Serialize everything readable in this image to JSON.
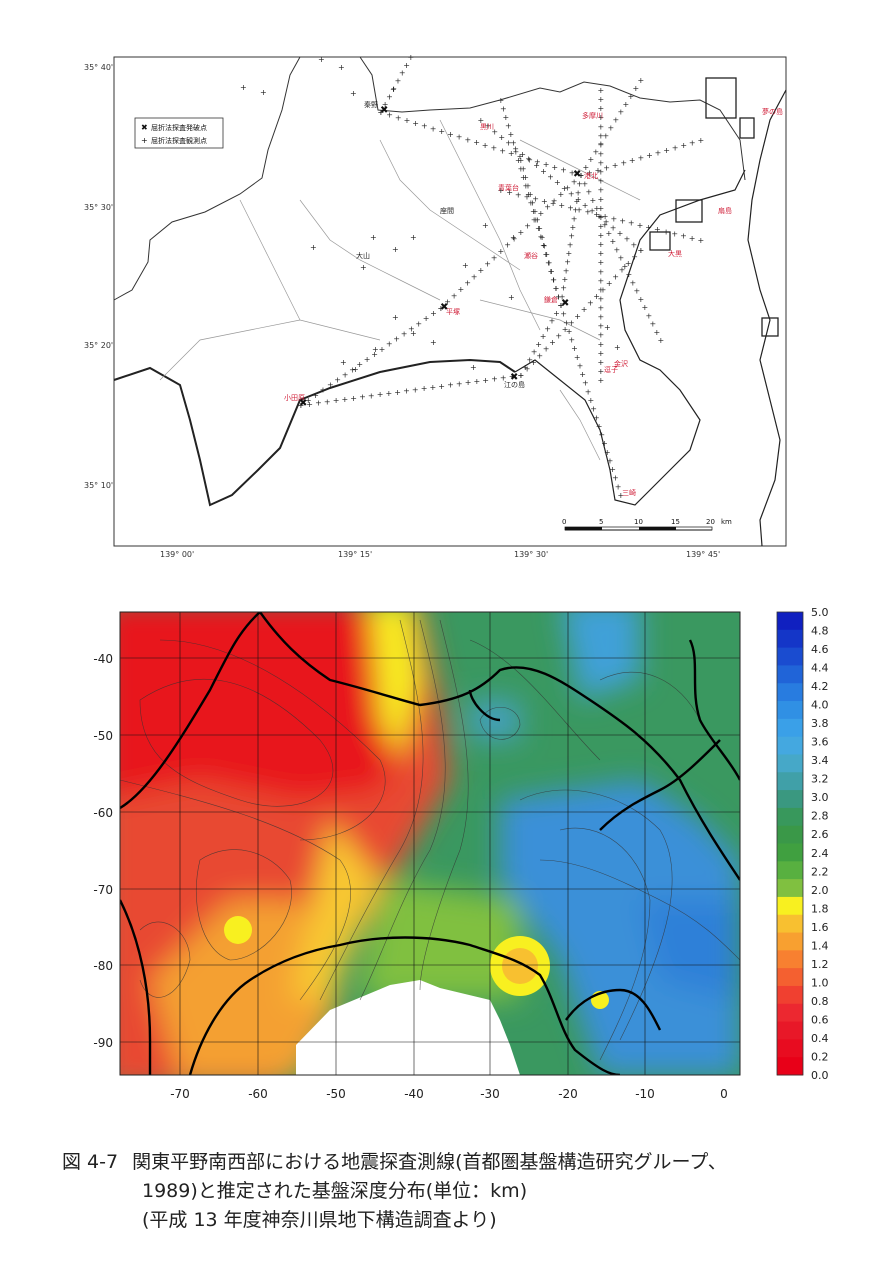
{
  "map": {
    "lat_labels": [
      "35° 40'",
      "35° 30'",
      "35° 20'",
      "35° 10'"
    ],
    "lon_labels": [
      "139° 00'",
      "139° 15'",
      "139° 30'",
      "139° 45'"
    ],
    "legend": {
      "items": [
        {
          "symbol": "✖",
          "label": "屈折法探査発破点"
        },
        {
          "symbol": "+",
          "label": "屈折法探査観測点"
        }
      ]
    },
    "place_labels": [
      {
        "text": "秦野",
        "color": "black"
      },
      {
        "text": "座間",
        "color": "black"
      },
      {
        "text": "大山",
        "color": "black"
      },
      {
        "text": "江の島",
        "color": "black"
      },
      {
        "text": "夢の島",
        "color": "red"
      },
      {
        "text": "多摩川",
        "color": "red"
      },
      {
        "text": "黒川",
        "color": "red"
      },
      {
        "text": "港北",
        "color": "red"
      },
      {
        "text": "青葉台",
        "color": "red"
      },
      {
        "text": "扇島",
        "color": "red"
      },
      {
        "text": "大黒",
        "color": "red"
      },
      {
        "text": "瀬谷",
        "color": "red"
      },
      {
        "text": "平塚",
        "color": "red"
      },
      {
        "text": "鎌倉",
        "color": "red"
      },
      {
        "text": "金沢",
        "color": "red"
      },
      {
        "text": "逗子",
        "color": "red"
      },
      {
        "text": "小田原",
        "color": "red"
      },
      {
        "text": "三崎",
        "color": "red"
      }
    ],
    "scalebar": {
      "ticks": [
        "0",
        "5",
        "10",
        "15",
        "20"
      ],
      "unit": "km"
    }
  },
  "contour": {
    "y_ticks": [
      "-40",
      "-50",
      "-60",
      "-70",
      "-80",
      "-90"
    ],
    "x_ticks": [
      "-70",
      "-60",
      "-50",
      "-40",
      "-30",
      "-20",
      "-10",
      "0"
    ],
    "colorbar": {
      "labels": [
        "5.0",
        "4.8",
        "4.6",
        "4.4",
        "4.2",
        "4.0",
        "3.8",
        "3.6",
        "3.4",
        "3.2",
        "3.0",
        "2.8",
        "2.6",
        "2.4",
        "2.2",
        "2.0",
        "1.8",
        "1.6",
        "1.4",
        "1.2",
        "1.0",
        "0.8",
        "0.6",
        "0.4",
        "0.2",
        "0.0"
      ],
      "colors": [
        "#1020c0",
        "#1436c8",
        "#1a4cd0",
        "#2064d8",
        "#287ce0",
        "#3090e4",
        "#3aa0e8",
        "#44a8e0",
        "#46a8c8",
        "#40a0a8",
        "#3a9880",
        "#38985c",
        "#3a9848",
        "#40a040",
        "#58b040",
        "#80c040",
        "#f8f020",
        "#f8c030",
        "#f8a030",
        "#f88030",
        "#f46030",
        "#f04030",
        "#ec2830",
        "#e81828",
        "#e80c20",
        "#e80018"
      ],
      "value_range": [
        0,
        5
      ]
    }
  },
  "caption": {
    "fig_no": "図 4-7",
    "line1": "関東平野南西部における地震探査測線(首都圏基盤構造研究グループ、",
    "line2": "1989)と推定された基盤深度分布(単位：km)",
    "line3": "(平成 13 年度神奈川県地下構造調査より)"
  }
}
